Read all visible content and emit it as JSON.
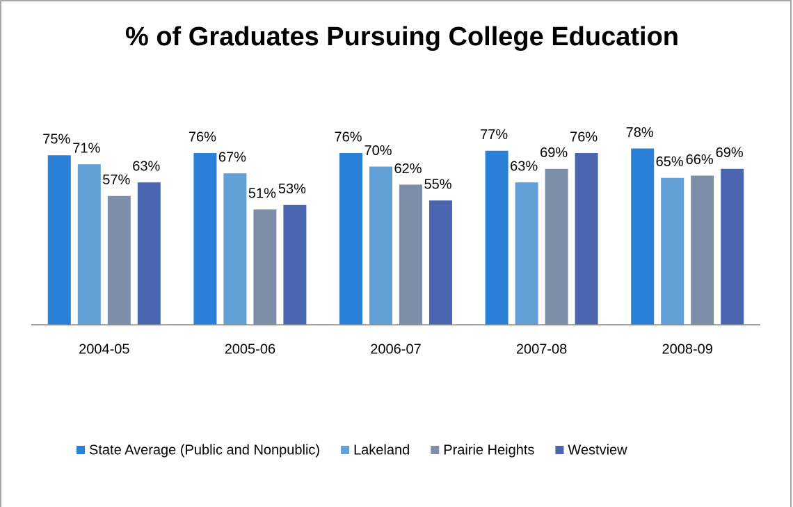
{
  "chart_data": {
    "type": "bar",
    "title": "% of Graduates Pursuing College Education",
    "categories": [
      "2004-05",
      "2005-06",
      "2006-07",
      "2007-08",
      "2008-09"
    ],
    "series": [
      {
        "name": "State Average (Public and Nonpublic)",
        "color": "#2a7fd6",
        "values": [
          75,
          76,
          76,
          77,
          78
        ],
        "value_labels": [
          "75%",
          "76%",
          "76%",
          "77%",
          "78%"
        ]
      },
      {
        "name": "Lakeland",
        "color": "#61a0d6",
        "values": [
          71,
          67,
          70,
          63,
          65
        ],
        "value_labels": [
          "71%",
          "67%",
          "70%",
          "63%",
          "65%"
        ]
      },
      {
        "name": "Prairie Heights",
        "color": "#7f8ea8",
        "values": [
          57,
          51,
          62,
          69,
          66
        ],
        "value_labels": [
          "57%",
          "51%",
          "62%",
          "69%",
          "66%"
        ]
      },
      {
        "name": "Westview",
        "color": "#4a66b0",
        "values": [
          63,
          53,
          55,
          76,
          69
        ],
        "value_labels": [
          "63%",
          "53%",
          "55%",
          "76%",
          "69%"
        ]
      }
    ],
    "ylim": [
      0,
      100
    ],
    "legend": "bottom"
  }
}
